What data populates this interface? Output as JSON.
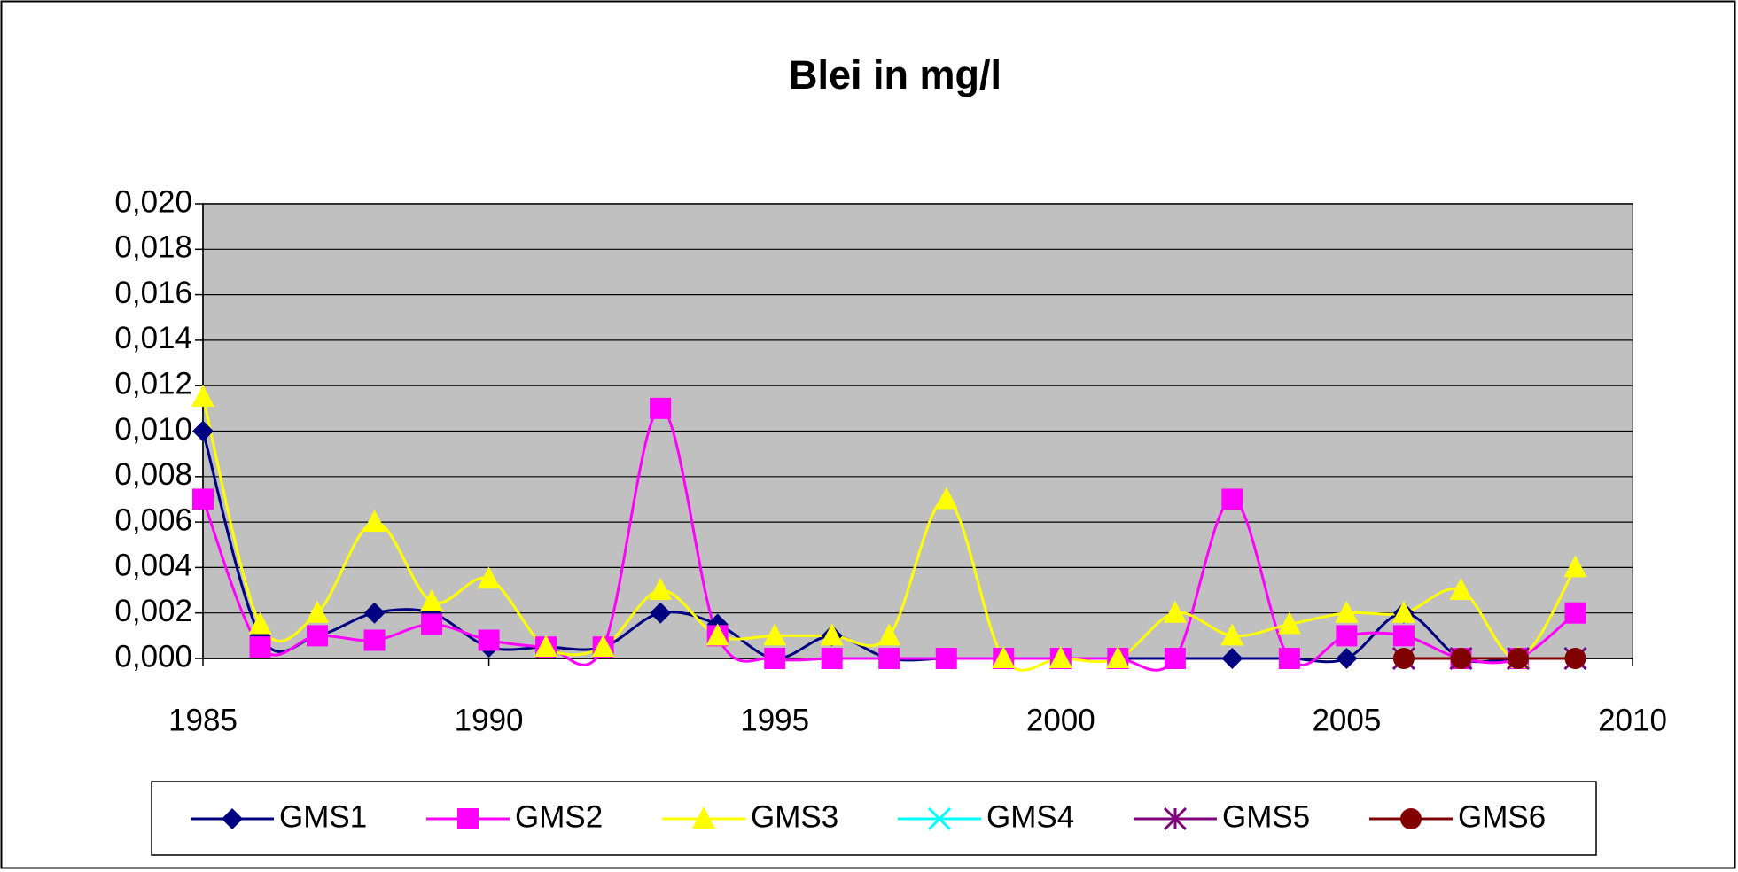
{
  "chart_data": {
    "type": "line",
    "title": "Blei in mg/l",
    "x": [
      1985,
      1986,
      1987,
      1988,
      1989,
      1990,
      1991,
      1992,
      1993,
      1994,
      1995,
      1996,
      1997,
      1998,
      1999,
      2000,
      2001,
      2002,
      2003,
      2004,
      2005,
      2006,
      2007,
      2008,
      2009
    ],
    "series": [
      {
        "name": "GMS1",
        "color": "#000080",
        "marker": "diamond",
        "values": [
          0.01,
          0.001,
          0.001,
          0.002,
          0.002,
          0.0005,
          0.0005,
          0.0005,
          0.002,
          0.0015,
          0,
          0.001,
          0,
          0,
          0,
          0,
          0,
          0,
          0,
          0,
          0,
          0.002,
          0,
          0,
          0
        ]
      },
      {
        "name": "GMS2",
        "color": "#ff00ff",
        "marker": "square",
        "values": [
          0.007,
          0.0005,
          0.001,
          0.0008,
          0.0015,
          0.0008,
          0.0005,
          0.0005,
          0.011,
          0.001,
          0,
          0,
          0,
          0,
          0,
          0,
          0,
          0,
          0.007,
          0,
          0.001,
          0.001,
          0,
          0,
          0.002
        ]
      },
      {
        "name": "GMS3",
        "color": "#ffff00",
        "marker": "triangle",
        "values": [
          0.0115,
          0.0015,
          0.002,
          0.006,
          0.0025,
          0.0035,
          0.0005,
          0.0005,
          0.003,
          0.001,
          0.001,
          0.001,
          0.001,
          0.007,
          0,
          0,
          0,
          0.002,
          0.001,
          0.0015,
          0.002,
          0.002,
          0.003,
          0,
          0.004
        ]
      },
      {
        "name": "GMS4",
        "color": "#00ffff",
        "marker": "x",
        "values": [
          null,
          null,
          null,
          null,
          null,
          null,
          null,
          null,
          null,
          null,
          null,
          null,
          null,
          null,
          null,
          null,
          null,
          null,
          null,
          null,
          null,
          0,
          0,
          0,
          0
        ]
      },
      {
        "name": "GMS5",
        "color": "#800080",
        "marker": "star",
        "values": [
          null,
          null,
          null,
          null,
          null,
          null,
          null,
          null,
          null,
          null,
          null,
          null,
          null,
          null,
          null,
          null,
          null,
          null,
          null,
          null,
          null,
          0,
          0,
          0,
          0
        ]
      },
      {
        "name": "GMS6",
        "color": "#800000",
        "marker": "circle",
        "values": [
          null,
          null,
          null,
          null,
          null,
          null,
          null,
          null,
          null,
          null,
          null,
          null,
          null,
          null,
          null,
          null,
          null,
          null,
          null,
          null,
          null,
          0,
          0,
          0,
          0
        ]
      }
    ],
    "xlim": [
      1985,
      2010
    ],
    "xticks": [
      1985,
      1990,
      1995,
      2000,
      2005,
      2010
    ],
    "ylim": [
      0,
      0.02
    ],
    "yticks": [
      {
        "value": 0,
        "label": "0,000"
      },
      {
        "value": 0.002,
        "label": "0,002"
      },
      {
        "value": 0.004,
        "label": "0,004"
      },
      {
        "value": 0.006,
        "label": "0,006"
      },
      {
        "value": 0.008,
        "label": "0,008"
      },
      {
        "value": 0.01,
        "label": "0,010"
      },
      {
        "value": 0.012,
        "label": "0,012"
      },
      {
        "value": 0.014,
        "label": "0,014"
      },
      {
        "value": 0.016,
        "label": "0,016"
      },
      {
        "value": 0.018,
        "label": "0,018"
      },
      {
        "value": 0.02,
        "label": "0,020"
      }
    ],
    "grid": true,
    "smooth": true,
    "plot_background": "#c0c0c0",
    "legend": "bottom"
  }
}
